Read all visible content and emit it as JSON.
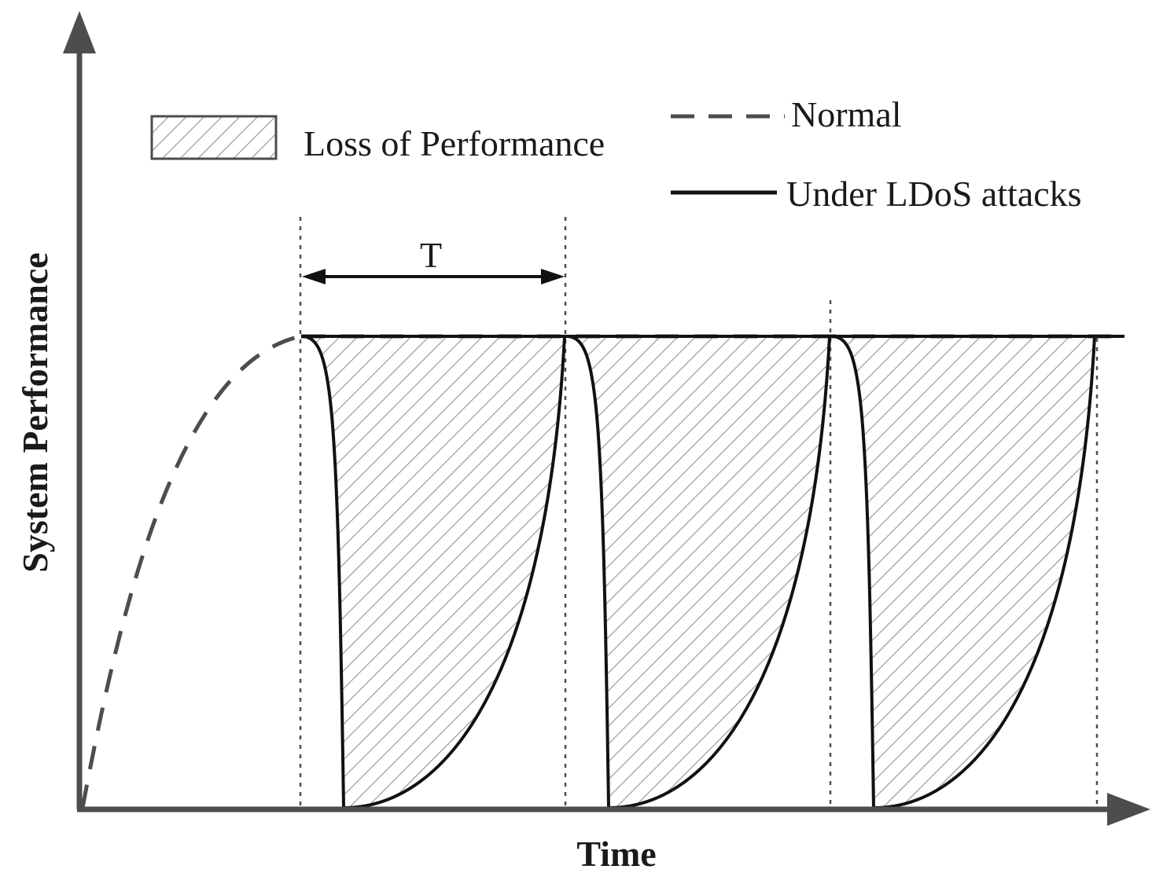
{
  "figure": {
    "axis_x_label": "Time",
    "axis_y_label": "System Performance",
    "period_label": "T"
  },
  "legend": {
    "loss_label": "Loss of Performance",
    "normal_label": "Normal",
    "attack_label": "Under LDoS attacks"
  },
  "colors": {
    "axis": "#4d4d4d",
    "curve": "#111111",
    "dashed": "#4d4d4d",
    "hatch": "#9a9a9a",
    "text": "#1a1a1a"
  },
  "chart_data": {
    "type": "line",
    "title": "",
    "xlabel": "Time",
    "ylabel": "System Performance",
    "period_count": 3,
    "series": [
      {
        "name": "Normal",
        "style": "dashed"
      },
      {
        "name": "Under LDoS attacks",
        "style": "solid"
      }
    ]
  }
}
